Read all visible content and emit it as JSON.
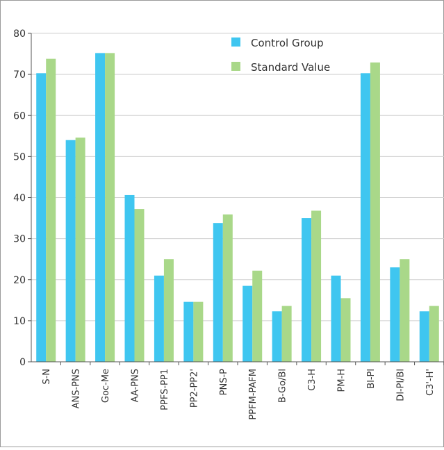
{
  "chart_data": {
    "type": "bar",
    "categories": [
      "S-N",
      "ANS-PNS",
      "Goc-Me",
      "AA-PNS",
      "PPFS-PP1",
      "PP2-PP2'",
      "PNS-P",
      "PPFM-PAFM",
      "B-Go/Bl",
      "C3-H",
      "PM-H",
      "Bl-Pl",
      "Dl-Pl/Bl",
      "C3'-H'"
    ],
    "series": [
      {
        "name": "Control Group",
        "color": "#3fc6f0",
        "values": [
          70.3,
          54.0,
          75.2,
          40.6,
          21.0,
          14.6,
          33.8,
          18.5,
          12.3,
          35.0,
          21.0,
          70.3,
          23.0,
          12.3
        ]
      },
      {
        "name": "Standard Value",
        "color": "#a9d889",
        "values": [
          73.8,
          54.6,
          75.2,
          37.2,
          25.0,
          14.6,
          35.9,
          22.2,
          13.6,
          36.8,
          15.5,
          72.9,
          25.0,
          13.6
        ]
      }
    ],
    "yticks": [
      0,
      10,
      20,
      30,
      40,
      50,
      60,
      70,
      80
    ],
    "ylim": [
      0,
      80
    ],
    "grid": true,
    "legend_position": "top-right",
    "title": "",
    "xlabel": "",
    "ylabel": ""
  }
}
